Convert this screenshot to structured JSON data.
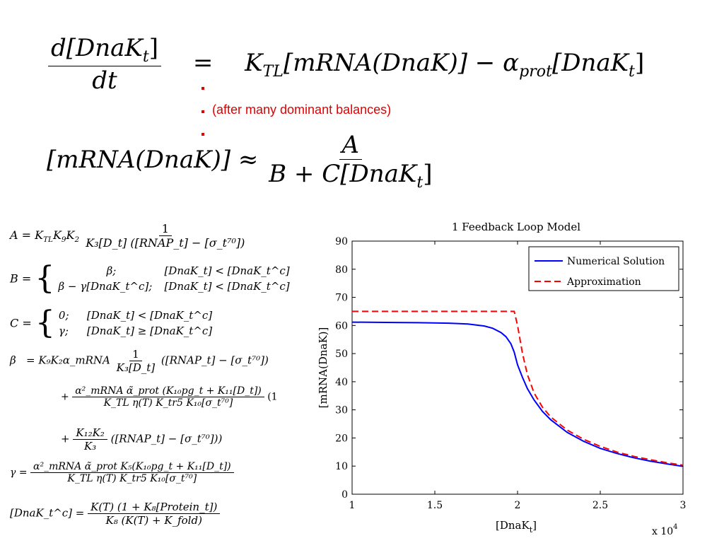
{
  "top_equation": {
    "lhs_num": "d[DnaK",
    "lhs_sub": "t",
    "lhs_num_close": "]",
    "lhs_den": "dt",
    "eq_sign": "=",
    "rhs_a": "K",
    "rhs_a_sub": "TL",
    "rhs_b": "[mRNA(DnaK)] − α",
    "rhs_b_sub": "prot",
    "rhs_c": "[DnaK",
    "rhs_c_sub": "t",
    "rhs_c_close": "]"
  },
  "note": "(after many dominant balances)",
  "approx_equation": {
    "lhs": "[mRNA(DnaK)] ≈",
    "num": "A",
    "den": "B + C[DnaK",
    "den_sub": "t",
    "den_close": "]"
  },
  "definitions": {
    "A_lhs": "A = K",
    "A_lhs_sub": "TL",
    "A_mid": "K",
    "A_mid_sub": "9",
    "A_mid2": "K",
    "A_mid2_sub": "2",
    "A_num": "1",
    "A_den": "K₃[D_t] ([RNAP_t] − [σ_t⁷⁰])",
    "B_lhs": "B =",
    "B_case1_val": "β;",
    "B_case1_cond": "[DnaK_t] < [DnaK_t^c]",
    "B_case2_val": "β − γ[DnaK_t^c];",
    "B_case2_cond": "[DnaK_t] < [DnaK_t^c]",
    "C_lhs": "C =",
    "C_case1_val": "0;",
    "C_case1_cond": "[DnaK_t] < [DnaK_t^c]",
    "C_case2_val": "γ;",
    "C_case2_cond": "[DnaK_t] ≥ [DnaK_t^c]",
    "beta_lhs": "β   =",
    "beta_line1_pre": "K₉K₂α_mRNA",
    "beta_line1_num": "1",
    "beta_line1_den": "K₃[D_t]",
    "beta_line1_post": "([RNAP_t] − [σ_t⁷⁰])",
    "beta_line2_pre": "+",
    "beta_line2_num": "α²_mRNA α̃_prot (K₁₀pg_t + K₁₁[D_t])",
    "beta_line2_den": "K_TL η(T) K_tr5 K₁₀[σ_t⁷⁰]",
    "beta_line2_post": "(1",
    "beta_line3_pre": "+",
    "beta_line3_num": "K₁₂K₂",
    "beta_line3_den": "K₃",
    "beta_line3_post": "([RNAP_t] − [σ_t⁷⁰]))",
    "gamma_lhs": "γ =",
    "gamma_num": "α²_mRNA α̃_prot K₅(K₁₀pg_t + K₁₁[D_t])",
    "gamma_den": "K_TL η(T) K_tr5 K₁₀[σ_t⁷⁰]",
    "dnakc_lhs": "[DnaK_t^c] =",
    "dnakc_num": "K(T) (1 + K₈[Protein_t])",
    "dnakc_den": "K₈ (K(T) + K_fold)"
  },
  "chart_data": {
    "type": "line",
    "title": "1 Feedback Loop Model",
    "xlabel": "[DnaK",
    "xlabel_sub": "t",
    "xlabel_close": "]",
    "ylabel": "[mRNA(DnaK)]",
    "xlim": [
      10000,
      30000
    ],
    "ylim": [
      0,
      90
    ],
    "x_ticks": [
      "1",
      "1.5",
      "2",
      "2.5",
      "3"
    ],
    "y_ticks": [
      "0",
      "10",
      "20",
      "30",
      "40",
      "50",
      "60",
      "70",
      "80",
      "90"
    ],
    "multiplier_label": "x 10",
    "multiplier_exp": "4",
    "grid": false,
    "legend_position": "top-right",
    "series": [
      {
        "name": "Numerical Solution",
        "color": "#0000ff",
        "style": "solid",
        "x": [
          10000,
          12000,
          14000,
          16000,
          17000,
          18000,
          18500,
          19000,
          19300,
          19600,
          19800,
          20000,
          20300,
          20600,
          21000,
          21500,
          22000,
          23000,
          24000,
          25000,
          26000,
          27000,
          28000,
          29000,
          30000
        ],
        "y": [
          61.2,
          61.1,
          61.0,
          60.8,
          60.5,
          59.8,
          59.0,
          57.5,
          56.0,
          53.5,
          50.5,
          46.0,
          41.5,
          37.5,
          33.5,
          29.5,
          26.5,
          22.0,
          18.8,
          16.3,
          14.5,
          13.0,
          11.8,
          10.8,
          9.9
        ]
      },
      {
        "name": "Approximation",
        "color": "#ff0000",
        "style": "dashed",
        "x": [
          10000,
          15000,
          19800,
          20000,
          20300,
          20600,
          21000,
          21500,
          22000,
          23000,
          24000,
          25000,
          26000,
          27000,
          28000,
          29000,
          30000
        ],
        "y": [
          65,
          65,
          65,
          60.0,
          50.0,
          42.5,
          36.0,
          31.0,
          27.5,
          22.8,
          19.5,
          17.0,
          15.0,
          13.5,
          12.3,
          11.2,
          10.3
        ]
      }
    ]
  }
}
